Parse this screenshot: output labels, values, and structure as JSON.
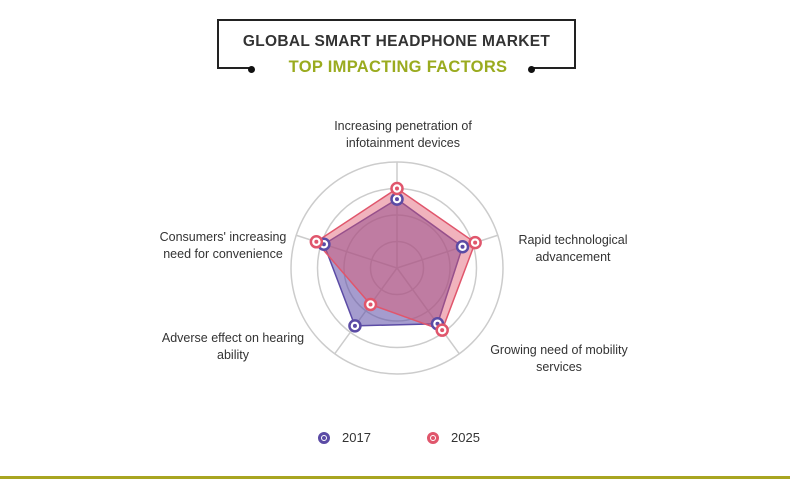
{
  "header": {
    "title": "GLOBAL SMART HEADPHONE MARKET",
    "subtitle": "TOP IMPACTING FACTORS"
  },
  "chart_data": {
    "type": "radar",
    "axes": [
      [
        "Increasing penetration of",
        "infotainment devices"
      ],
      [
        "Rapid technological",
        "advancement"
      ],
      [
        "Growing need of mobility",
        "services"
      ],
      [
        "Adverse effect on hearing",
        "ability"
      ],
      [
        "Consumers' increasing",
        "need for convenience"
      ]
    ],
    "rmax": 4,
    "grid_rings": 4,
    "grid": true,
    "legend_position": "bottom-center",
    "series": [
      {
        "name": "2017",
        "color": "#5b4ba5",
        "values": [
          2.6,
          2.6,
          2.6,
          2.7,
          2.9
        ]
      },
      {
        "name": "2025",
        "color": "#e0566c",
        "values": [
          3.0,
          3.1,
          2.9,
          1.7,
          3.2
        ]
      }
    ]
  },
  "colors": {
    "title_accent": "#9aab1f",
    "footer_line": "#a8a520",
    "grid": "#cccccc"
  }
}
